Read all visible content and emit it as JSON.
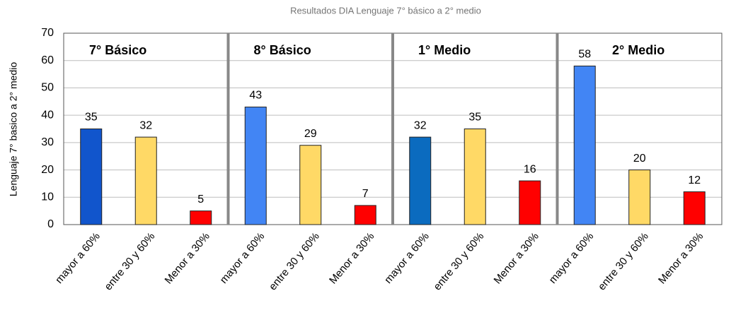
{
  "chart_data": {
    "type": "bar",
    "title": "Resultados DIA Lenguaje 7° básico a 2° medio",
    "y_label": "Lenguaje 7° basico a 2° medio",
    "groups": [
      "7° Básico",
      "8° Básico",
      "1° Medio",
      "2° Medio"
    ],
    "categories": [
      "mayor a 60%",
      "entre 30 y 60%",
      "Menor a 30%",
      "mayor a 60%",
      "entre 30 y 60%",
      "Menor a 30%",
      "mayor a 60%",
      "entre 30 y 60%",
      "Menor a 30%",
      "mayor a 60%",
      "entre 30 y 60%",
      "Menor a 30%"
    ],
    "values": [
      35,
      32,
      5,
      43,
      29,
      7,
      32,
      35,
      16,
      58,
      20,
      12
    ],
    "colors": [
      "#1155cc",
      "#ffd966",
      "#ff0000",
      "#4285f4",
      "#ffd966",
      "#ff0000",
      "#0b6bbf",
      "#ffd966",
      "#ff0000",
      "#4285f4",
      "#ffd966",
      "#ff0000"
    ],
    "ylim": [
      0,
      70
    ],
    "yticks": [
      0,
      10,
      20,
      30,
      40,
      50,
      60,
      70
    ],
    "grid": true
  }
}
